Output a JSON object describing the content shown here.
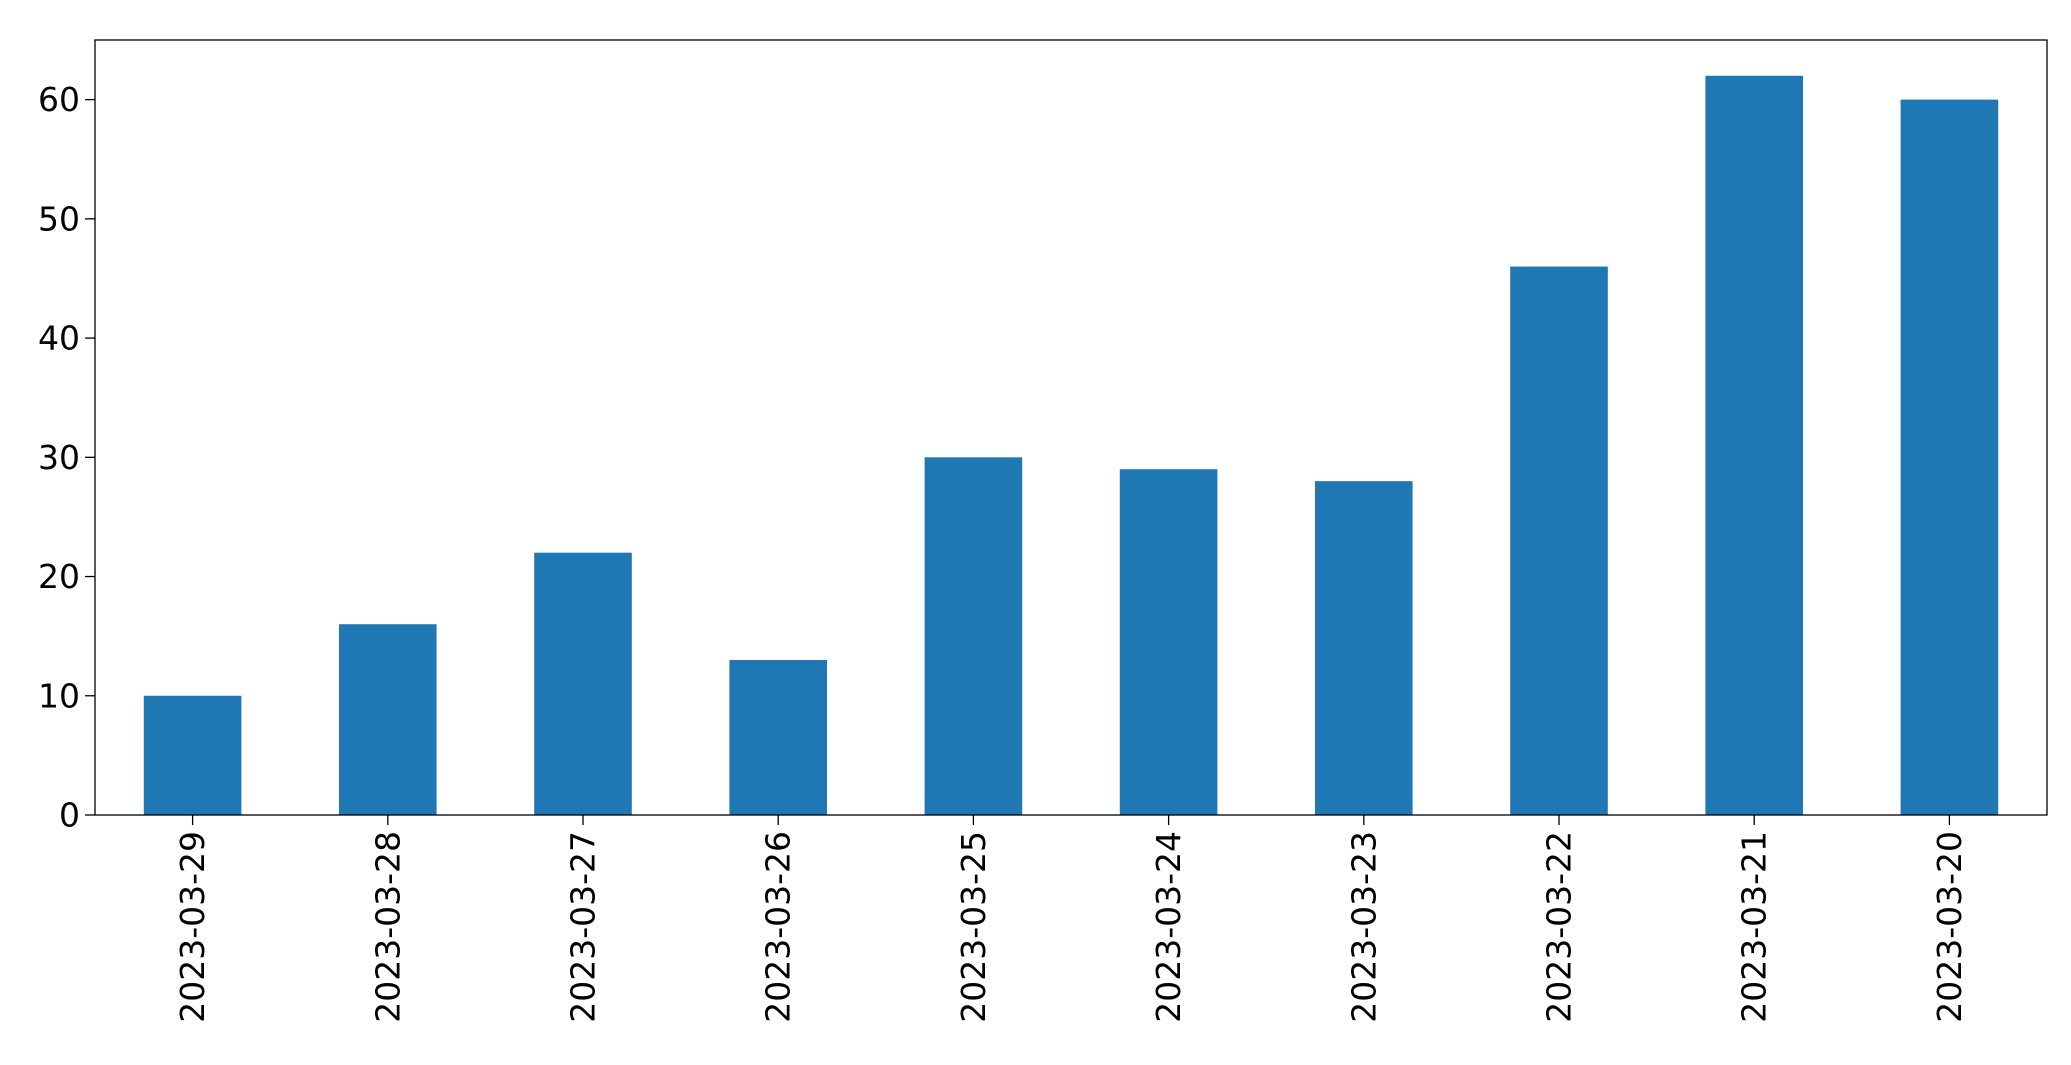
{
  "chart_data": {
    "type": "bar",
    "title": "",
    "xlabel": "",
    "ylabel": "",
    "categories": [
      "2023-03-29",
      "2023-03-28",
      "2023-03-27",
      "2023-03-26",
      "2023-03-25",
      "2023-03-24",
      "2023-03-23",
      "2023-03-22",
      "2023-03-21",
      "2023-03-20"
    ],
    "values": [
      10,
      16,
      22,
      13,
      30,
      29,
      28,
      46,
      62,
      60
    ],
    "ylim": [
      0,
      65
    ],
    "yticks": [
      0,
      10,
      20,
      30,
      40,
      50,
      60
    ],
    "yticklabels": [
      "0",
      "10",
      "20",
      "30",
      "40",
      "50",
      "60"
    ],
    "grid": false,
    "legend": "none",
    "colors": {
      "bar": "#1f77b4",
      "axes": "#000000",
      "text": "#000000"
    }
  }
}
